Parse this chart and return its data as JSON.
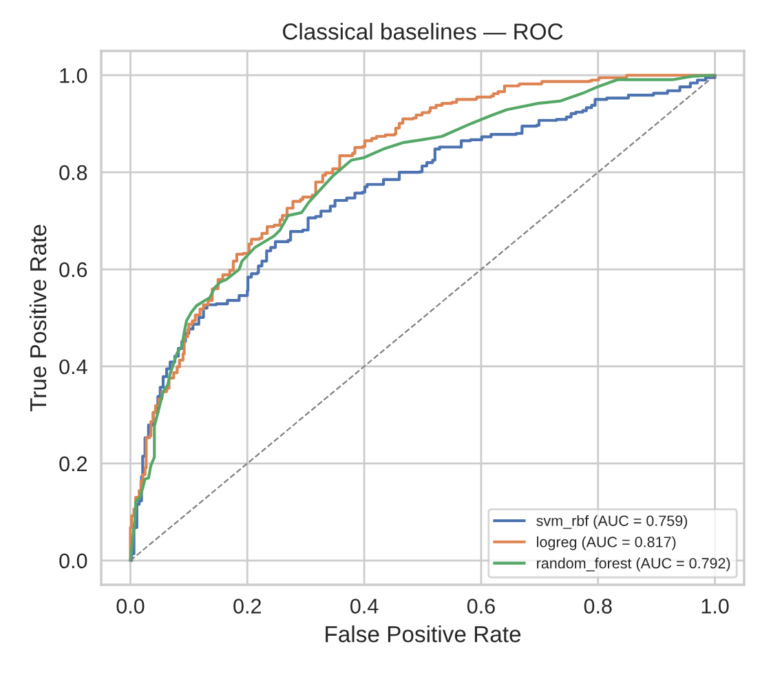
{
  "chart_data": {
    "type": "line",
    "title": "Classical baselines — ROC",
    "xlabel": "False Positive Rate",
    "ylabel": "True Positive Rate",
    "xlim": [
      -0.05,
      1.05
    ],
    "ylim": [
      -0.05,
      1.05
    ],
    "xticks": [
      {
        "value": 0,
        "label": "0.0"
      },
      0.2,
      0.4,
      0.6,
      0.8,
      {
        "value": 1,
        "label": "1.0"
      }
    ],
    "yticks": [
      {
        "value": 0,
        "label": "0.0"
      },
      0.2,
      0.4,
      0.6,
      0.8,
      {
        "value": 1,
        "label": "1.0"
      }
    ],
    "grid": true,
    "legend": "bottom right",
    "line_style": "solid",
    "series": [
      {
        "name": "svm_rbf (AUC = 0.759)",
        "type": "step",
        "color": "#4c72b0",
        "x": [
          0,
          0.002,
          0.006,
          0.011,
          0.015,
          0.019,
          0.021,
          0.025,
          0.031,
          0.039,
          0.047,
          0.051,
          0.056,
          0.062,
          0.068,
          0.076,
          0.082,
          0.088,
          0.094,
          0.1,
          0.107,
          0.117,
          0.125,
          0.131,
          0.147,
          0.166,
          0.186,
          0.2,
          0.201,
          0.207,
          0.217,
          0.219,
          0.225,
          0.233,
          0.24,
          0.248,
          0.27,
          0.274,
          0.295,
          0.304,
          0.317,
          0.326,
          0.342,
          0.35,
          0.37,
          0.384,
          0.397,
          0.401,
          0.405,
          0.429,
          0.433,
          0.452,
          0.46,
          0.495,
          0.499,
          0.507,
          0.517,
          0.521,
          0.529,
          0.558,
          0.566,
          0.582,
          0.601,
          0.617,
          0.66,
          0.67,
          0.695,
          0.699,
          0.729,
          0.746,
          0.754,
          0.762,
          0.774,
          0.78,
          0.789,
          0.795,
          0.815,
          0.852,
          0.895,
          0.919,
          0.94,
          0.958,
          0.97,
          0.984,
          1
        ],
        "values": [
          0,
          0.014,
          0.068,
          0.116,
          0.123,
          0.173,
          0.215,
          0.253,
          0.279,
          0.305,
          0.338,
          0.357,
          0.379,
          0.395,
          0.409,
          0.421,
          0.437,
          0.451,
          0.468,
          0.477,
          0.487,
          0.501,
          0.52,
          0.527,
          0.529,
          0.536,
          0.546,
          0.556,
          0.584,
          0.591,
          0.593,
          0.607,
          0.617,
          0.638,
          0.645,
          0.657,
          0.66,
          0.678,
          0.681,
          0.706,
          0.709,
          0.72,
          0.73,
          0.742,
          0.747,
          0.757,
          0.759,
          0.77,
          0.775,
          0.775,
          0.785,
          0.785,
          0.8,
          0.801,
          0.813,
          0.82,
          0.825,
          0.848,
          0.852,
          0.852,
          0.865,
          0.867,
          0.873,
          0.878,
          0.88,
          0.895,
          0.897,
          0.907,
          0.909,
          0.914,
          0.921,
          0.924,
          0.927,
          0.933,
          0.938,
          0.95,
          0.953,
          0.959,
          0.963,
          0.968,
          0.976,
          0.984,
          0.99,
          0.995,
          1
        ]
      },
      {
        "name": "logreg (AUC = 0.817)",
        "type": "step",
        "color": "#dd8452",
        "x": [
          0,
          0,
          0.002,
          0.006,
          0.009,
          0.015,
          0.018,
          0.021,
          0.025,
          0.027,
          0.033,
          0.035,
          0.039,
          0.043,
          0.049,
          0.054,
          0.062,
          0.066,
          0.074,
          0.08,
          0.084,
          0.09,
          0.092,
          0.098,
          0.1,
          0.106,
          0.111,
          0.119,
          0.125,
          0.133,
          0.14,
          0.15,
          0.158,
          0.17,
          0.176,
          0.182,
          0.193,
          0.203,
          0.207,
          0.221,
          0.225,
          0.234,
          0.246,
          0.256,
          0.26,
          0.268,
          0.278,
          0.291,
          0.295,
          0.311,
          0.317,
          0.329,
          0.334,
          0.346,
          0.358,
          0.38,
          0.384,
          0.397,
          0.401,
          0.413,
          0.421,
          0.436,
          0.452,
          0.454,
          0.46,
          0.466,
          0.484,
          0.489,
          0.499,
          0.511,
          0.513,
          0.523,
          0.533,
          0.55,
          0.558,
          0.591,
          0.593,
          0.617,
          0.621,
          0.629,
          0.64,
          0.664,
          0.666,
          0.703,
          0.704,
          0.785,
          0.789,
          0.801,
          0.802,
          0.848,
          0.849,
          1
        ],
        "values": [
          0,
          0.068,
          0.092,
          0.106,
          0.13,
          0.144,
          0.163,
          0.177,
          0.191,
          0.253,
          0.257,
          0.286,
          0.305,
          0.319,
          0.333,
          0.348,
          0.355,
          0.376,
          0.387,
          0.399,
          0.413,
          0.426,
          0.461,
          0.475,
          0.487,
          0.494,
          0.506,
          0.518,
          0.527,
          0.536,
          0.56,
          0.579,
          0.589,
          0.598,
          0.617,
          0.631,
          0.633,
          0.652,
          0.662,
          0.664,
          0.674,
          0.688,
          0.691,
          0.702,
          0.711,
          0.726,
          0.74,
          0.744,
          0.749,
          0.753,
          0.78,
          0.794,
          0.799,
          0.807,
          0.834,
          0.839,
          0.851,
          0.853,
          0.865,
          0.87,
          0.874,
          0.877,
          0.879,
          0.891,
          0.901,
          0.91,
          0.912,
          0.918,
          0.923,
          0.926,
          0.933,
          0.938,
          0.942,
          0.944,
          0.95,
          0.952,
          0.955,
          0.957,
          0.962,
          0.966,
          0.978,
          0.98,
          0.982,
          0.984,
          0.987,
          0.988,
          0.99,
          0.993,
          0.995,
          0.996,
          1,
          1
        ]
      },
      {
        "name": "random_forest (AUC = 0.792)",
        "color": "#55a868",
        "x": [
          0,
          0.004,
          0.008,
          0.009,
          0.017,
          0.021,
          0.025,
          0.031,
          0.035,
          0.041,
          0.041,
          0.049,
          0.056,
          0.064,
          0.068,
          0.072,
          0.08,
          0.088,
          0.092,
          0.096,
          0.104,
          0.113,
          0.125,
          0.136,
          0.144,
          0.154,
          0.164,
          0.186,
          0.191,
          0.213,
          0.246,
          0.256,
          0.27,
          0.293,
          0.305,
          0.346,
          0.378,
          0.399,
          0.433,
          0.466,
          0.499,
          0.533,
          0.578,
          0.617,
          0.644,
          0.697,
          0.736,
          0.774,
          0.801,
          0.834,
          0.929,
          0.962,
          1
        ],
        "values": [
          0,
          0.045,
          0.087,
          0.121,
          0.132,
          0.149,
          0.168,
          0.17,
          0.196,
          0.213,
          0.277,
          0.314,
          0.348,
          0.362,
          0.385,
          0.399,
          0.428,
          0.442,
          0.47,
          0.494,
          0.511,
          0.525,
          0.534,
          0.542,
          0.562,
          0.574,
          0.579,
          0.6,
          0.617,
          0.645,
          0.669,
          0.681,
          0.711,
          0.717,
          0.738,
          0.792,
          0.825,
          0.83,
          0.848,
          0.861,
          0.867,
          0.874,
          0.898,
          0.917,
          0.929,
          0.942,
          0.947,
          0.963,
          0.977,
          0.991,
          0.991,
          0.998,
          1
        ]
      },
      {
        "color": "#808080",
        "line_style": "dashed",
        "x": [
          0,
          1
        ],
        "values": [
          0,
          1
        ]
      }
    ]
  }
}
